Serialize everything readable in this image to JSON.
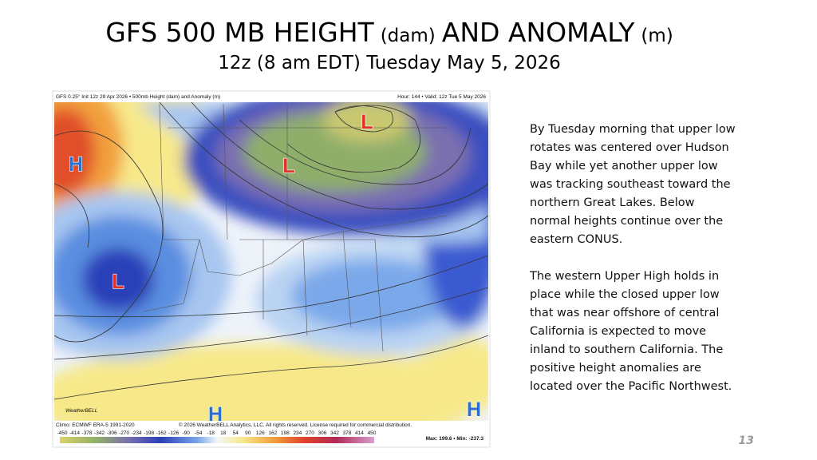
{
  "title": {
    "part1": "GFS 500 MB HEIGHT",
    "unit1": "(dam)",
    "part2": "AND ANOMALY",
    "unit2": "(m)",
    "subtitle": "12z (8 am EDT) Tuesday May 5, 2026"
  },
  "map": {
    "header_left": "GFS 0.25° Init 12z 29 Apr 2026 • 500mb Height (dam) and Anomaly (m)",
    "header_right": "Hour: 144 • Valid: 12z Tue 5 May 2026",
    "centers": [
      "H",
      "L",
      "L",
      "L",
      "H",
      "H"
    ],
    "climo": "Climo: ECMWF ERA-5 1991-2020",
    "credit": "© 2026 WeatherBELL Analytics, LLC. All rights reserved. License required for commercial distribution.",
    "logo": "WeatherBELL",
    "colorbar_ticks": [
      -450,
      -414,
      -378,
      -342,
      -306,
      -270,
      -234,
      -198,
      -162,
      -126,
      -90,
      -54,
      -18,
      18,
      54,
      90,
      126,
      162,
      198,
      234,
      270,
      306,
      342,
      378,
      414,
      450
    ],
    "max_min": "Max: 199.6 • Min: -237.3"
  },
  "paragraphs": [
    [
      "By Tuesday morning that upper low",
      "rotates was centered over Hudson",
      "Bay while yet another upper low",
      "was tracking southeast toward the",
      "northern Great Lakes. Below",
      "normal heights continue over the",
      "eastern CONUS."
    ],
    [
      "The western Upper High holds in",
      "place while the closed upper low",
      "that was near offshore of central",
      "California is expected to move",
      "inland to southern California.  The",
      "positive height anomalies are",
      "located over the Pacific Northwest."
    ]
  ],
  "page_number": "13"
}
